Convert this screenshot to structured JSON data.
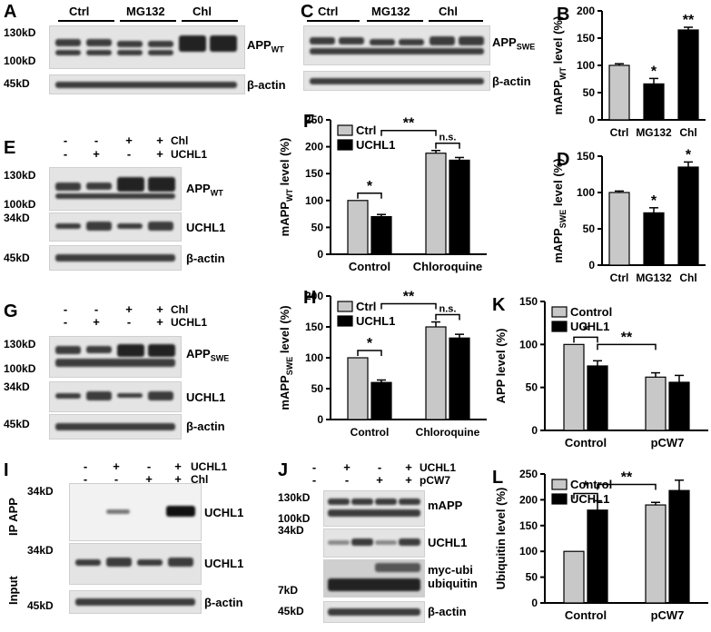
{
  "panels": {
    "A": {
      "letter": "A",
      "groups": [
        "Ctrl",
        "MG132",
        "Chl"
      ],
      "mw": [
        "130kD",
        "100kD",
        "45kD"
      ],
      "labels": [
        "APP",
        "WT",
        "β-actin"
      ]
    },
    "C": {
      "letter": "C",
      "groups": [
        "Ctrl",
        "MG132",
        "Chl"
      ],
      "labels": [
        "APP",
        "SWE",
        "β-actin"
      ]
    },
    "E": {
      "letter": "E",
      "rows": [
        {
          "name": "Chl",
          "signs": [
            "-",
            "-",
            "+",
            "+"
          ]
        },
        {
          "name": "UCHL1",
          "signs": [
            "-",
            "+",
            "-",
            "+"
          ]
        }
      ],
      "mw": [
        "130kD",
        "100kD",
        "34kD",
        "45kD"
      ],
      "labels": [
        "APP",
        "WT",
        "UCHL1",
        "β-actin"
      ]
    },
    "G": {
      "letter": "G",
      "rows": [
        {
          "name": "Chl",
          "signs": [
            "-",
            "-",
            "+",
            "+"
          ]
        },
        {
          "name": "UCHL1",
          "signs": [
            "-",
            "+",
            "-",
            "+"
          ]
        }
      ],
      "mw": [
        "130kD",
        "100kD",
        "34kD",
        "45kD"
      ],
      "labels": [
        "APP",
        "SWE",
        "UCHL1",
        "β-actin"
      ]
    },
    "I": {
      "letter": "I",
      "rows": [
        {
          "name": "UCHL1",
          "signs": [
            "-",
            "+",
            "-",
            "+"
          ]
        },
        {
          "name": "Chl",
          "signs": [
            "-",
            "-",
            "+",
            "+"
          ]
        }
      ],
      "mw": [
        "34kD",
        "34kD",
        "45kD"
      ],
      "labels": [
        "UCHL1",
        "UCHL1",
        "β-actin"
      ],
      "side": [
        "IP APP",
        "Input"
      ]
    },
    "J": {
      "letter": "J",
      "rows": [
        {
          "name": "UCHL1",
          "signs": [
            "-",
            "+",
            "-",
            "+"
          ]
        },
        {
          "name": "pCW7",
          "signs": [
            "-",
            "-",
            "+",
            "+"
          ]
        }
      ],
      "mw": [
        "130kD",
        "100kD",
        "34kD",
        "7kD",
        "45kD"
      ],
      "labels": [
        "mAPP",
        "UCHL1",
        "myc-ubi",
        "ubiquitin",
        "β-actin"
      ]
    }
  },
  "chart_data": [
    {
      "panel": "B",
      "type": "bar",
      "categories": [
        "Ctrl",
        "MG132",
        "Chl"
      ],
      "values": [
        100,
        66,
        165
      ],
      "errors": [
        3,
        10,
        5
      ],
      "ylabel": "mAPP",
      "ylabel_sub": "WT",
      "ylabel_tail": " level (%)",
      "ylim": [
        0,
        200
      ],
      "ticks": [
        "0",
        "50",
        "100",
        "150",
        "200"
      ],
      "marks": [
        "",
        "*",
        "**"
      ]
    },
    {
      "panel": "D",
      "type": "bar",
      "categories": [
        "Ctrl",
        "MG132",
        "Chl"
      ],
      "values": [
        100,
        72,
        135
      ],
      "errors": [
        2,
        7,
        7
      ],
      "ylabel": "mAPP",
      "ylabel_sub": "SWE",
      "ylabel_tail": " level (%)",
      "ylim": [
        0,
        150
      ],
      "ticks": [
        "0",
        "50",
        "100",
        "150"
      ],
      "marks": [
        "",
        "*",
        "*"
      ]
    },
    {
      "panel": "F",
      "type": "bar",
      "categories": [
        "Control",
        "Chloroquine"
      ],
      "series": [
        {
          "name": "Ctrl",
          "values": [
            100,
            188
          ],
          "errors": [
            0,
            5
          ]
        },
        {
          "name": "UCHL1",
          "values": [
            70,
            175
          ],
          "errors": [
            4,
            5
          ]
        }
      ],
      "ylabel": "mAPP",
      "ylabel_sub": "WT",
      "ylabel_tail": " level (%)",
      "ylim": [
        0,
        250
      ],
      "ticks": [
        "0",
        "50",
        "100",
        "150",
        "200",
        "250"
      ],
      "legend": "top-left",
      "annotations": [
        "*",
        "n.s.",
        "**"
      ]
    },
    {
      "panel": "H",
      "type": "bar",
      "categories": [
        "Control",
        "Chloroquine"
      ],
      "series": [
        {
          "name": "Ctrl",
          "values": [
            100,
            150
          ],
          "errors": [
            0,
            8
          ]
        },
        {
          "name": "UCHL1",
          "values": [
            60,
            132
          ],
          "errors": [
            4,
            6
          ]
        }
      ],
      "ylabel": "mAPP",
      "ylabel_sub": "SWE",
      "ylabel_tail": " level (%)",
      "ylim": [
        0,
        200
      ],
      "ticks": [
        "0",
        "50",
        "100",
        "150",
        "200"
      ],
      "legend": "top-left",
      "annotations": [
        "*",
        "n.s.",
        "**"
      ]
    },
    {
      "panel": "K",
      "type": "bar",
      "categories": [
        "Control",
        "pCW7"
      ],
      "series": [
        {
          "name": "Control",
          "values": [
            100,
            62
          ],
          "errors": [
            0,
            5
          ]
        },
        {
          "name": "UCHL1",
          "values": [
            75,
            56
          ],
          "errors": [
            6,
            8
          ]
        }
      ],
      "ylabel": "APP level (%)",
      "ylim": [
        0,
        150
      ],
      "ticks": [
        "0",
        "50",
        "100",
        "150"
      ],
      "legend": "top-left",
      "annotations": [
        "*",
        "**"
      ]
    },
    {
      "panel": "L",
      "type": "bar",
      "categories": [
        "Control",
        "pCW7"
      ],
      "series": [
        {
          "name": "Control",
          "values": [
            100,
            190
          ],
          "errors": [
            0,
            5
          ]
        },
        {
          "name": "UCHL1",
          "values": [
            180,
            218
          ],
          "errors": [
            18,
            20
          ]
        }
      ],
      "ylabel": "Ubiquitin level (%)",
      "ylim": [
        0,
        250
      ],
      "ticks": [
        "0",
        "50",
        "100",
        "150",
        "200",
        "250"
      ],
      "legend": "top-left",
      "annotations": [
        "*",
        "**"
      ]
    }
  ],
  "colors": {
    "ctrl_bar": "#c8c8c8",
    "treat_bar": "#000000",
    "blot_bg": "#e4e4e4",
    "band": "#3c3c3c"
  }
}
